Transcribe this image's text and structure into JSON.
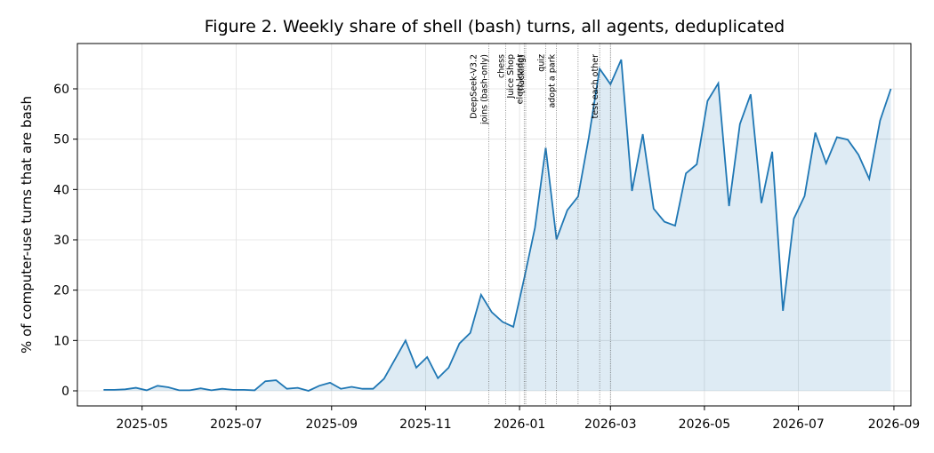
{
  "chart_data": {
    "type": "area",
    "title": "Figure 2. Weekly share of shell (bash) turns, all agents, deduplicated",
    "xlabel": "",
    "ylabel": "% of computer-use turns that are bash",
    "ylim": [
      -3,
      69
    ],
    "xlim": [
      "2025-03-20",
      "2026-09-12"
    ],
    "grid": true,
    "colors": {
      "line": "#1f77b4",
      "fill": "#1f77b4",
      "fill_opacity": 0.15
    },
    "x_ticks": [
      "2025-05-01",
      "2025-07-01",
      "2025-09-01",
      "2025-11-01",
      "2026-01-01",
      "2026-03-01",
      "2026-05-01",
      "2026-07-01",
      "2026-09-01"
    ],
    "x_tick_labels": [
      "2025-05",
      "2025-07",
      "2025-09",
      "2025-11",
      "2026-01",
      "2026-03",
      "2026-05",
      "2026-07",
      "2026-09"
    ],
    "y_ticks": [
      0,
      10,
      20,
      30,
      40,
      50,
      60
    ],
    "y_tick_labels": [
      "0",
      "10",
      "20",
      "30",
      "40",
      "50",
      "60"
    ],
    "annotations": [
      {
        "date": "2025-12-12",
        "lines": [
          "DeepSeek-V3.2",
          "joins (bash-only)"
        ]
      },
      {
        "date": "2025-12-23",
        "lines": [
          "chess"
        ]
      },
      {
        "date": "2026-01-04",
        "lines": [
          "elect leader"
        ]
      },
      {
        "date": "2026-01-05",
        "lines": [
          "Juice Shop",
          "(hacking)"
        ]
      },
      {
        "date": "2026-01-18",
        "lines": [
          "quiz"
        ]
      },
      {
        "date": "2026-01-25",
        "lines": [
          "adopt a park"
        ]
      },
      {
        "date": "2026-02-08",
        "lines": []
      },
      {
        "date": "2026-02-22",
        "lines": [
          "test each other"
        ]
      },
      {
        "date": "2026-03-01",
        "lines": []
      }
    ],
    "series": [
      {
        "x": [
          "2025-04-06",
          "2025-04-13",
          "2025-04-20",
          "2025-04-27",
          "2025-05-04",
          "2025-05-11",
          "2025-05-18",
          "2025-05-25",
          "2025-06-01",
          "2025-06-08",
          "2025-06-15",
          "2025-06-22",
          "2025-06-29",
          "2025-07-06",
          "2025-07-13",
          "2025-07-20",
          "2025-07-27",
          "2025-08-03",
          "2025-08-10",
          "2025-08-17",
          "2025-08-24",
          "2025-08-31",
          "2025-09-07",
          "2025-09-14",
          "2025-09-21",
          "2025-09-28",
          "2025-10-05",
          "2025-10-12",
          "2025-10-19",
          "2025-10-26",
          "2025-11-02",
          "2025-11-09",
          "2025-11-16",
          "2025-11-23",
          "2025-11-30",
          "2025-12-07",
          "2025-12-14",
          "2025-12-21",
          "2025-12-28",
          "2026-01-04",
          "2026-01-11",
          "2026-01-18",
          "2026-01-25",
          "2026-02-01",
          "2026-02-08",
          "2026-02-15",
          "2026-02-22",
          "2026-03-01",
          "2026-03-08",
          "2026-03-15",
          "2026-03-22",
          "2026-03-29",
          "2026-04-05",
          "2026-04-12",
          "2026-04-19",
          "2026-04-26",
          "2026-05-03",
          "2026-05-10",
          "2026-05-17",
          "2026-05-24",
          "2026-05-31",
          "2026-06-07",
          "2026-06-14",
          "2026-06-21",
          "2026-06-28",
          "2026-07-05",
          "2026-07-12",
          "2026-07-19",
          "2026-07-26",
          "2026-08-02",
          "2026-08-09",
          "2026-08-16",
          "2026-08-23",
          "2026-08-30"
        ],
        "values": [
          0.2,
          0.2,
          0.3,
          0.6,
          0.1,
          1.0,
          0.7,
          0.1,
          0.1,
          0.5,
          0.1,
          0.4,
          0.2,
          0.2,
          0.1,
          1.9,
          2.1,
          0.4,
          0.6,
          0.0,
          1.0,
          1.6,
          0.4,
          0.8,
          0.4,
          0.4,
          2.4,
          6.2,
          10.0,
          4.6,
          6.7,
          2.5,
          4.6,
          9.4,
          11.5,
          19.1,
          15.6,
          13.7,
          12.7,
          22.3,
          32.4,
          48.3,
          30.1,
          35.9,
          38.6,
          50.4,
          64.0,
          60.9,
          65.8,
          39.7,
          51.0,
          36.2,
          33.6,
          32.8,
          43.2,
          45.0,
          57.6,
          61.1,
          36.7,
          53.0,
          58.9,
          37.3,
          47.5,
          15.9,
          34.2,
          38.7,
          51.3,
          45.2,
          50.4,
          49.9,
          46.9,
          42.1,
          53.7,
          60.0
        ]
      }
    ]
  }
}
